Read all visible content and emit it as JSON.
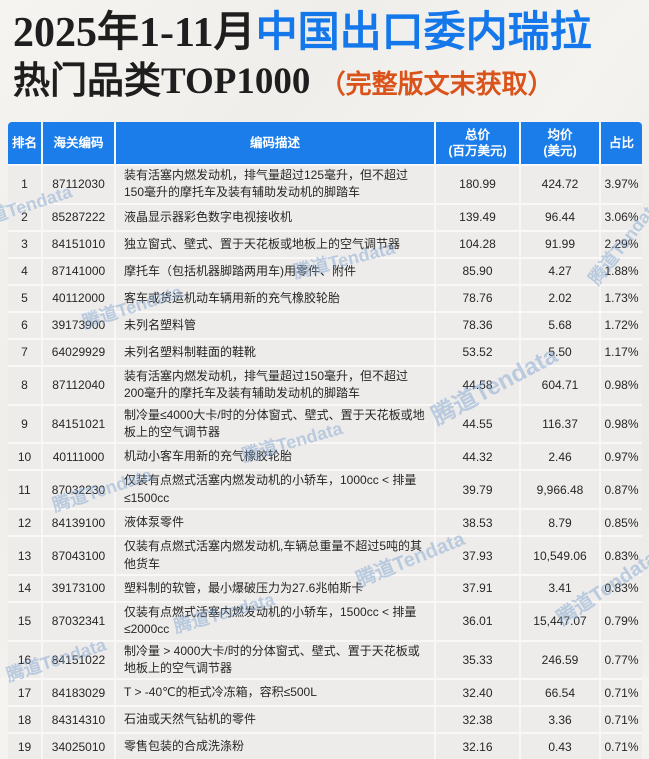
{
  "title": {
    "line1_black": "2025年1-11月",
    "line1_blue": "中国出口委内瑞拉",
    "line2_black": "热门品类TOP1000",
    "line2_orange": "（完整版文末获取）"
  },
  "watermark": {
    "text": "腾道Tendata"
  },
  "colors": {
    "header_blue": "#1b7de9",
    "title_blue": "#1578ea",
    "title_orange": "#d9531a",
    "row_bg": "#edecea",
    "watermark_blue": "#82a5d2"
  },
  "table": {
    "headers": {
      "rank": "排名",
      "code": "海关编码",
      "desc": "编码描述",
      "total_l1": "总价",
      "total_l2": "(百万美元)",
      "avg_l1": "均价",
      "avg_l2": "(美元)",
      "share": "占比"
    },
    "rows": [
      {
        "rank": "1",
        "code": "87112030",
        "desc": "装有活塞内燃发动机，排气量超过125毫升，但不超过150毫升的摩托车及装有辅助发动机的脚踏车",
        "total": "180.99",
        "avg": "424.72",
        "share": "3.97%"
      },
      {
        "rank": "2",
        "code": "85287222",
        "desc": "液晶显示器彩色数字电视接收机",
        "total": "139.49",
        "avg": "96.44",
        "share": "3.06%"
      },
      {
        "rank": "3",
        "code": "84151010",
        "desc": "独立窗式、壁式、置于天花板或地板上的空气调节器",
        "total": "104.28",
        "avg": "91.99",
        "share": "2.29%"
      },
      {
        "rank": "4",
        "code": "87141000",
        "desc": "摩托车（包括机器脚踏两用车)用零件、附件",
        "total": "85.90",
        "avg": "4.27",
        "share": "1.88%"
      },
      {
        "rank": "5",
        "code": "40112000",
        "desc": "客车或货运机动车辆用新的充气橡胶轮胎",
        "total": "78.76",
        "avg": "2.02",
        "share": "1.73%"
      },
      {
        "rank": "6",
        "code": "39173900",
        "desc": "未列名塑料管",
        "total": "78.36",
        "avg": "5.68",
        "share": "1.72%"
      },
      {
        "rank": "7",
        "code": "64029929",
        "desc": "未列名塑料制鞋面的鞋靴",
        "total": "53.52",
        "avg": "5.50",
        "share": "1.17%"
      },
      {
        "rank": "8",
        "code": "87112040",
        "desc": "装有活塞内燃发动机，排气量超过150毫升，但不超过200毫升的摩托车及装有辅助发动机的脚踏车",
        "total": "44.58",
        "avg": "604.71",
        "share": "0.98%"
      },
      {
        "rank": "9",
        "code": "84151021",
        "desc": "制冷量≤4000大卡/时的分体窗式、壁式、置于天花板或地板上的空气调节器",
        "total": "44.55",
        "avg": "116.37",
        "share": "0.98%"
      },
      {
        "rank": "10",
        "code": "40111000",
        "desc": "机动小客车用新的充气橡胶轮胎",
        "total": "44.32",
        "avg": "2.46",
        "share": "0.97%"
      },
      {
        "rank": "11",
        "code": "87032230",
        "desc": "仅装有点燃式活塞内燃发动机的小轿车，1000cc < 排量≤1500cc",
        "total": "39.79",
        "avg": "9,966.48",
        "share": "0.87%"
      },
      {
        "rank": "12",
        "code": "84139100",
        "desc": "液体泵零件",
        "total": "38.53",
        "avg": "8.79",
        "share": "0.85%"
      },
      {
        "rank": "13",
        "code": "87043100",
        "desc": "仅装有点燃式活塞内燃发动机,车辆总重量不超过5吨的其他货车",
        "total": "37.93",
        "avg": "10,549.06",
        "share": "0.83%"
      },
      {
        "rank": "14",
        "code": "39173100",
        "desc": "塑料制的软管，最小爆破压力为27.6兆帕斯卡",
        "total": "37.91",
        "avg": "3.41",
        "share": "0.83%"
      },
      {
        "rank": "15",
        "code": "87032341",
        "desc": "仅装有点燃式活塞内燃发动机的小轿车，1500cc < 排量≤2000cc",
        "total": "36.01",
        "avg": "15,447.07",
        "share": "0.79%"
      },
      {
        "rank": "16",
        "code": "84151022",
        "desc": "制冷量 > 4000大卡/时的分体窗式、壁式、置于天花板或地板上的空气调节器",
        "total": "35.33",
        "avg": "246.59",
        "share": "0.77%"
      },
      {
        "rank": "17",
        "code": "84183029",
        "desc": "T > -40℃的柜式冷冻箱，容积≤500L",
        "total": "32.40",
        "avg": "66.54",
        "share": "0.71%"
      },
      {
        "rank": "18",
        "code": "84314310",
        "desc": "石油或天然气钻机的零件",
        "total": "32.38",
        "avg": "3.36",
        "share": "0.71%"
      },
      {
        "rank": "19",
        "code": "34025010",
        "desc": "零售包装的合成洗涤粉",
        "total": "32.16",
        "avg": "0.43",
        "share": "0.71%"
      }
    ]
  }
}
